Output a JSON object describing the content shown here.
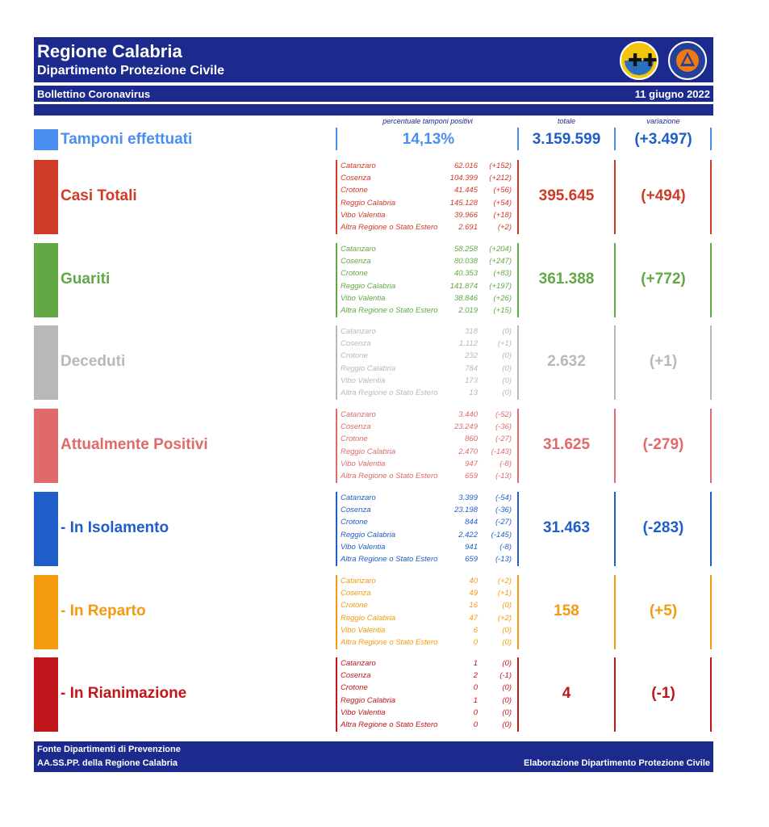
{
  "header": {
    "title": "Regione Calabria",
    "subtitle": "Dipartimento Protezione Civile",
    "bulletin": "Bollettino Coronavirus",
    "date": "11 giugno 2022",
    "logo_text": "PROTEZIONE CIVILE"
  },
  "columns": {
    "percent": "percentuale tamponi positivi",
    "total": "totale",
    "variation": "variazione"
  },
  "tamponi": {
    "label": "Tamponi effettuati",
    "percent": "14,13%",
    "total": "3.159.599",
    "variation": "(+3.497)",
    "color": "#4a8ff0"
  },
  "sections": [
    {
      "label": "Casi Totali",
      "color": "#cf3b28",
      "total": "395.645",
      "variation": "(+494)",
      "rows": [
        {
          "province": "Catanzaro",
          "value": "62.016",
          "delta": "(+152)"
        },
        {
          "province": "Cosenza",
          "value": "104.399",
          "delta": "(+212)"
        },
        {
          "province": "Crotone",
          "value": "41.445",
          "delta": "(+56)"
        },
        {
          "province": "Reggio Calabria",
          "value": "145.128",
          "delta": "(+54)"
        },
        {
          "province": "Vibo Valentia",
          "value": "39.966",
          "delta": "(+18)"
        },
        {
          "province": "Altra Regione o Stato Estero",
          "value": "2.691",
          "delta": "(+2)"
        }
      ]
    },
    {
      "label": "Guariti",
      "color": "#62a845",
      "total": "361.388",
      "variation": "(+772)",
      "rows": [
        {
          "province": "Catanzaro",
          "value": "58.258",
          "delta": "(+204)"
        },
        {
          "province": "Cosenza",
          "value": "80.038",
          "delta": "(+247)"
        },
        {
          "province": "Crotone",
          "value": "40.353",
          "delta": "(+83)"
        },
        {
          "province": "Reggio Calabria",
          "value": "141.874",
          "delta": "(+197)"
        },
        {
          "province": "Vibo Valentia",
          "value": "38.846",
          "delta": "(+26)"
        },
        {
          "province": "Altra Regione o Stato Estero",
          "value": "2.019",
          "delta": "(+15)"
        }
      ]
    },
    {
      "label": "Deceduti",
      "color": "#b8b8b8",
      "total": "2.632",
      "variation": "(+1)",
      "rows": [
        {
          "province": "Catanzaro",
          "value": "318",
          "delta": "(0)"
        },
        {
          "province": "Cosenza",
          "value": "1.112",
          "delta": "(+1)"
        },
        {
          "province": "Crotone",
          "value": "232",
          "delta": "(0)"
        },
        {
          "province": "Reggio Calabria",
          "value": "784",
          "delta": "(0)"
        },
        {
          "province": "Vibo Valentia",
          "value": "173",
          "delta": "(0)"
        },
        {
          "province": "Altra Regione o Stato Estero",
          "value": "13",
          "delta": "(0)"
        }
      ]
    },
    {
      "label": "Attualmente Positivi",
      "color": "#e06a6a",
      "total": "31.625",
      "variation": "(-279)",
      "rows": [
        {
          "province": "Catanzaro",
          "value": "3.440",
          "delta": "(-52)"
        },
        {
          "province": "Cosenza",
          "value": "23.249",
          "delta": "(-36)"
        },
        {
          "province": "Crotone",
          "value": "860",
          "delta": "(-27)"
        },
        {
          "province": "Reggio Calabria",
          "value": "2.470",
          "delta": "(-143)"
        },
        {
          "province": "Vibo Valentia",
          "value": "947",
          "delta": "(-8)"
        },
        {
          "province": "Altra Regione o Stato Estero",
          "value": "659",
          "delta": "(-13)"
        }
      ]
    },
    {
      "label": "- In Isolamento",
      "color": "#1f5ec9",
      "total": "31.463",
      "variation": "(-283)",
      "rows": [
        {
          "province": "Catanzaro",
          "value": "3.399",
          "delta": "(-54)"
        },
        {
          "province": "Cosenza",
          "value": "23.198",
          "delta": "(-36)"
        },
        {
          "province": "Crotone",
          "value": "844",
          "delta": "(-27)"
        },
        {
          "province": "Reggio Calabria",
          "value": "2.422",
          "delta": "(-145)"
        },
        {
          "province": "Vibo Valentia",
          "value": "941",
          "delta": "(-8)"
        },
        {
          "province": "Altra Regione o Stato Estero",
          "value": "659",
          "delta": "(-13)"
        }
      ]
    },
    {
      "label": "- In Reparto",
      "color": "#f49a0f",
      "total": "158",
      "variation": "(+5)",
      "rows": [
        {
          "province": "Catanzaro",
          "value": "40",
          "delta": "(+2)"
        },
        {
          "province": "Cosenza",
          "value": "49",
          "delta": "(+1)"
        },
        {
          "province": "Crotone",
          "value": "16",
          "delta": "(0)"
        },
        {
          "province": "Reggio Calabria",
          "value": "47",
          "delta": "(+2)"
        },
        {
          "province": "Vibo Valentia",
          "value": "6",
          "delta": "(0)"
        },
        {
          "province": "Altra Regione o Stato Estero",
          "value": "0",
          "delta": "(0)"
        }
      ]
    },
    {
      "label": "- In Rianimazione",
      "color": "#c0161c",
      "total": "4",
      "variation": "(-1)",
      "rows": [
        {
          "province": "Catanzaro",
          "value": "1",
          "delta": "(0)"
        },
        {
          "province": "Cosenza",
          "value": "2",
          "delta": "(-1)"
        },
        {
          "province": "Crotone",
          "value": "0",
          "delta": "(0)"
        },
        {
          "province": "Reggio Calabria",
          "value": "1",
          "delta": "(0)"
        },
        {
          "province": "Vibo Valentia",
          "value": "0",
          "delta": "(0)"
        },
        {
          "province": "Altra Regione o Stato Estero",
          "value": "0",
          "delta": "(0)"
        }
      ]
    }
  ],
  "footer": {
    "source_line1": "Fonte Dipartimenti di Prevenzione",
    "source_line2": "AA.SS.PP.  della Regione Calabria",
    "elaboration": "Elaborazione Dipartimento Protezione Civile"
  }
}
